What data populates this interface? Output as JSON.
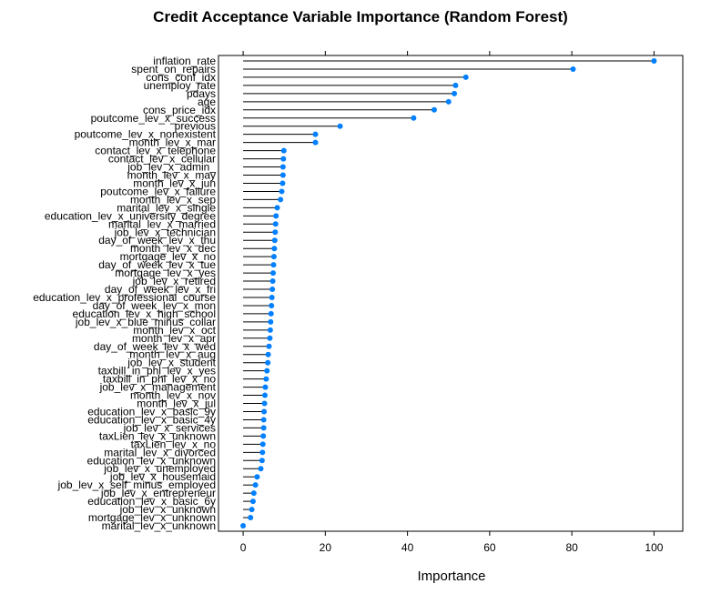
{
  "chart_data": {
    "type": "dotplot",
    "title": "Credit Acceptance Variable Importance (Random Forest)",
    "xlabel": "Importance",
    "ylabel": "",
    "xlim": [
      -6,
      107
    ],
    "xticks": [
      "0",
      "20",
      "40",
      "60",
      "80",
      "100"
    ],
    "xtick_values": [
      0,
      20,
      40,
      60,
      80,
      100
    ],
    "point_color": "#0080ff",
    "categories": [
      "inflation_rate",
      "spent_on_repairs",
      "cons_conf_idx",
      "unemploy_rate",
      "pdays",
      "age",
      "cons_price_idx",
      "poutcome_lev_x_success",
      "previous",
      "poutcome_lev_x_nonexistent",
      "month_lev_x_mar",
      "contact_lev_x_telephone",
      "contact_lev_x_cellular",
      "job_lev_x_admin_",
      "month_lev_x_may",
      "month_lev_x_jun",
      "poutcome_lev_x_failure",
      "month_lev_x_sep",
      "marital_lev_x_single",
      "education_lev_x_university_degree",
      "marital_lev_x_married",
      "job_lev_x_technician",
      "day_of_week_lev_x_thu",
      "month_lev_x_dec",
      "mortgage_lev_x_no",
      "day_of_week_lev_x_tue",
      "mortgage_lev_x_yes",
      "job_lev_x_retired",
      "day_of_week_lev_x_fri",
      "education_lev_x_professional_course",
      "day_of_week_lev_x_mon",
      "education_lev_x_high_school",
      "job_lev_x_blue_minus_collar",
      "month_lev_x_oct",
      "month_lev_x_apr",
      "day_of_week_lev_x_wed",
      "month_lev_x_aug",
      "job_lev_x_student",
      "taxbill_in_phl_lev_x_yes",
      "taxbill_in_phl_lev_x_no",
      "job_lev_x_management",
      "month_lev_x_nov",
      "month_lev_x_jul",
      "education_lev_x_basic_9y",
      "education_lev_x_basic_4y",
      "job_lev_x_services",
      "taxLien_lev_x_unknown",
      "taxLien_lev_x_no",
      "marital_lev_x_divorced",
      "education_lev_x_unknown",
      "job_lev_x_unemployed",
      "job_lev_x_housemaid",
      "job_lev_x_self_minus_employed",
      "job_lev_x_entrepreneur",
      "education_lev_x_basic_6y",
      "job_lev_x_unknown",
      "mortgage_lev_x_unknown",
      "marital_lev_x_unknown"
    ],
    "values": [
      100,
      80.3,
      54.2,
      51.7,
      51.4,
      50.0,
      46.5,
      41.5,
      23.6,
      17.6,
      17.6,
      9.9,
      9.8,
      9.7,
      9.7,
      9.6,
      9.4,
      9.1,
      8.3,
      8.0,
      7.9,
      7.8,
      7.7,
      7.6,
      7.5,
      7.4,
      7.3,
      7.2,
      7.1,
      7.0,
      6.9,
      6.8,
      6.7,
      6.6,
      6.5,
      6.3,
      6.1,
      6.0,
      5.8,
      5.6,
      5.4,
      5.3,
      5.2,
      5.1,
      5.0,
      5.0,
      4.9,
      4.8,
      4.7,
      4.6,
      4.3,
      3.4,
      3.0,
      2.6,
      2.4,
      2.1,
      1.8,
      0
    ]
  }
}
